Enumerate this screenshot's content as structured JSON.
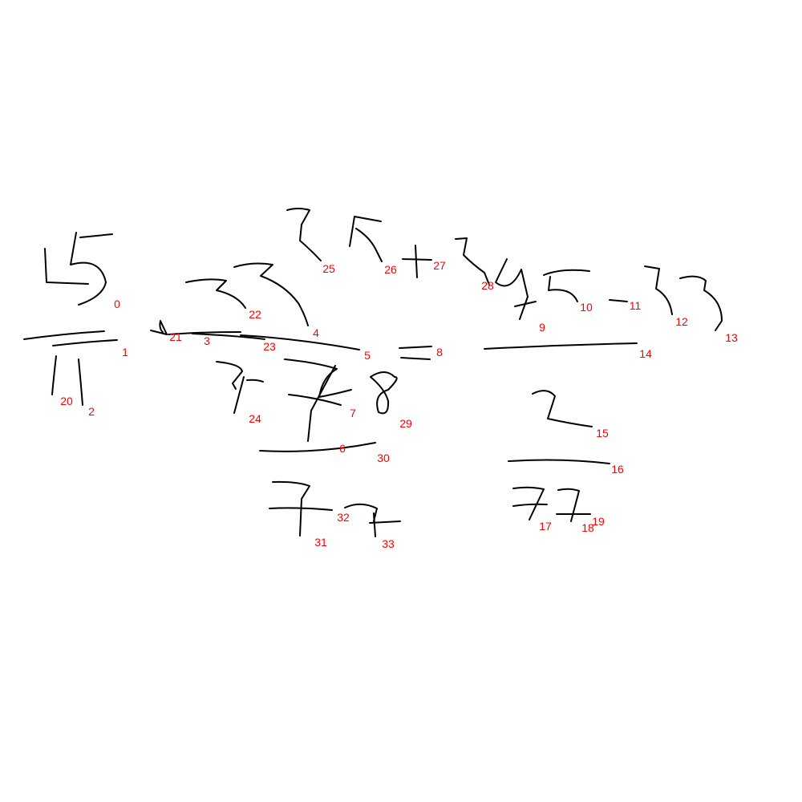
{
  "colors": {
    "background": "#ffffff",
    "ink": "#000000",
    "label": "#ff0000"
  },
  "strokes": [
    {
      "id": "0",
      "label": "0"
    },
    {
      "id": "1",
      "label": "1"
    },
    {
      "id": "2",
      "label": "2"
    },
    {
      "id": "3",
      "label": "3"
    },
    {
      "id": "4",
      "label": "4"
    },
    {
      "id": "5",
      "label": "5"
    },
    {
      "id": "6",
      "label": "6"
    },
    {
      "id": "7",
      "label": "7"
    },
    {
      "id": "8",
      "label": "8"
    },
    {
      "id": "9",
      "label": "9"
    },
    {
      "id": "10",
      "label": "10"
    },
    {
      "id": "11",
      "label": "11"
    },
    {
      "id": "12",
      "label": "12"
    },
    {
      "id": "13",
      "label": "13"
    },
    {
      "id": "14",
      "label": "14"
    },
    {
      "id": "15",
      "label": "15"
    },
    {
      "id": "16",
      "label": "16"
    },
    {
      "id": "17",
      "label": "17"
    },
    {
      "id": "18",
      "label": "18"
    },
    {
      "id": "19",
      "label": "19"
    },
    {
      "id": "20",
      "label": "20"
    },
    {
      "id": "21",
      "label": "21"
    },
    {
      "id": "22",
      "label": "22"
    },
    {
      "id": "23",
      "label": "23"
    },
    {
      "id": "24",
      "label": "24"
    },
    {
      "id": "25",
      "label": "25"
    },
    {
      "id": "26",
      "label": "26"
    },
    {
      "id": "27",
      "label": "27"
    },
    {
      "id": "28",
      "label": "28"
    },
    {
      "id": "29",
      "label": "29"
    },
    {
      "id": "30",
      "label": "30"
    },
    {
      "id": "31",
      "label": "31"
    },
    {
      "id": "32",
      "label": "32"
    },
    {
      "id": "33",
      "label": "33"
    }
  ]
}
